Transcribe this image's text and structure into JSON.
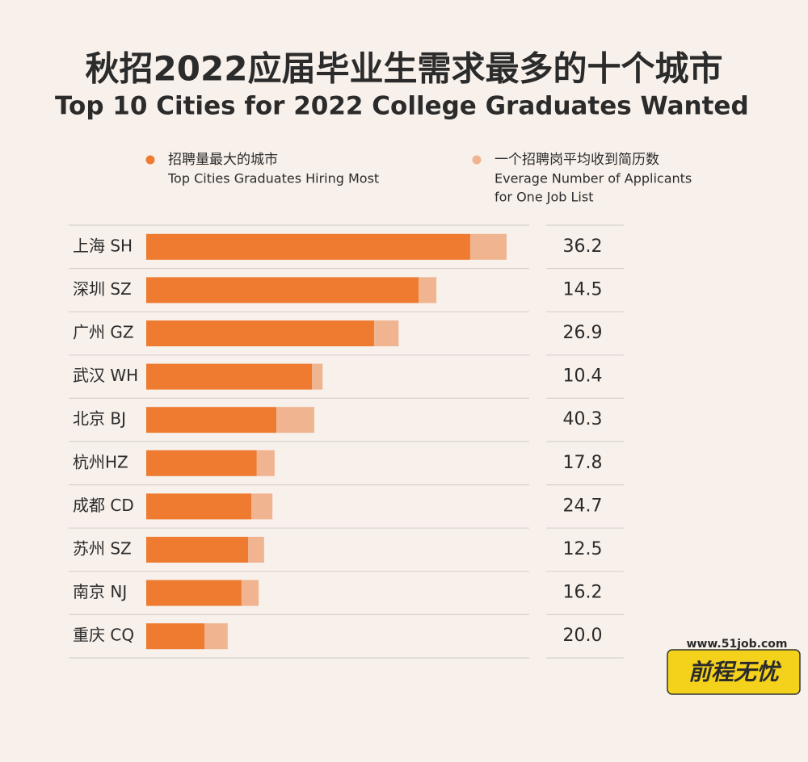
{
  "chart_data": {
    "type": "stacked-hbar",
    "title": "秋招2022应届毕业生需求最多的十个城市",
    "subtitle": "Top 10 Cities for 2022 College Graduates Wanted",
    "categories": [
      "上海 SH",
      "深圳 SZ",
      "广州 GZ",
      "武汉 WH",
      "北京 BJ",
      "杭州HZ",
      "成都 CD",
      "苏州 SZ",
      "南京 NJ",
      "重庆 CQ"
    ],
    "xlim": [
      0,
      100
    ],
    "series": [
      {
        "name": "招聘量最大的城市",
        "name_en": [
          "Top Cities Graduates Hiring Most"
        ],
        "color": "#ee7b30",
        "values": [
          89.1,
          74.9,
          62.7,
          45.6,
          35.8,
          30.4,
          28.9,
          28.0,
          26.2,
          16.0
        ]
      },
      {
        "name": "一个招聘岗平均收到简历数",
        "name_en": [
          "Everage Number of Applicants",
          "for One Job List"
        ],
        "color": "#f0b490",
        "values": [
          10.0,
          4.9,
          6.7,
          2.9,
          10.4,
          4.9,
          5.8,
          4.4,
          4.7,
          6.4
        ]
      }
    ],
    "applicants": {
      "values": [
        36.2,
        14.5,
        26.9,
        10.4,
        40.3,
        17.8,
        24.7,
        12.5,
        16.2,
        20.0
      ],
      "value_labels": [
        "36.2",
        "14.5",
        "26.9",
        "10.4",
        "40.3",
        "17.8",
        "24.7",
        "12.5",
        "16.2",
        "20.0"
      ]
    },
    "watermark": {
      "url": "www.51job.com",
      "brand": "前程无忧"
    }
  }
}
